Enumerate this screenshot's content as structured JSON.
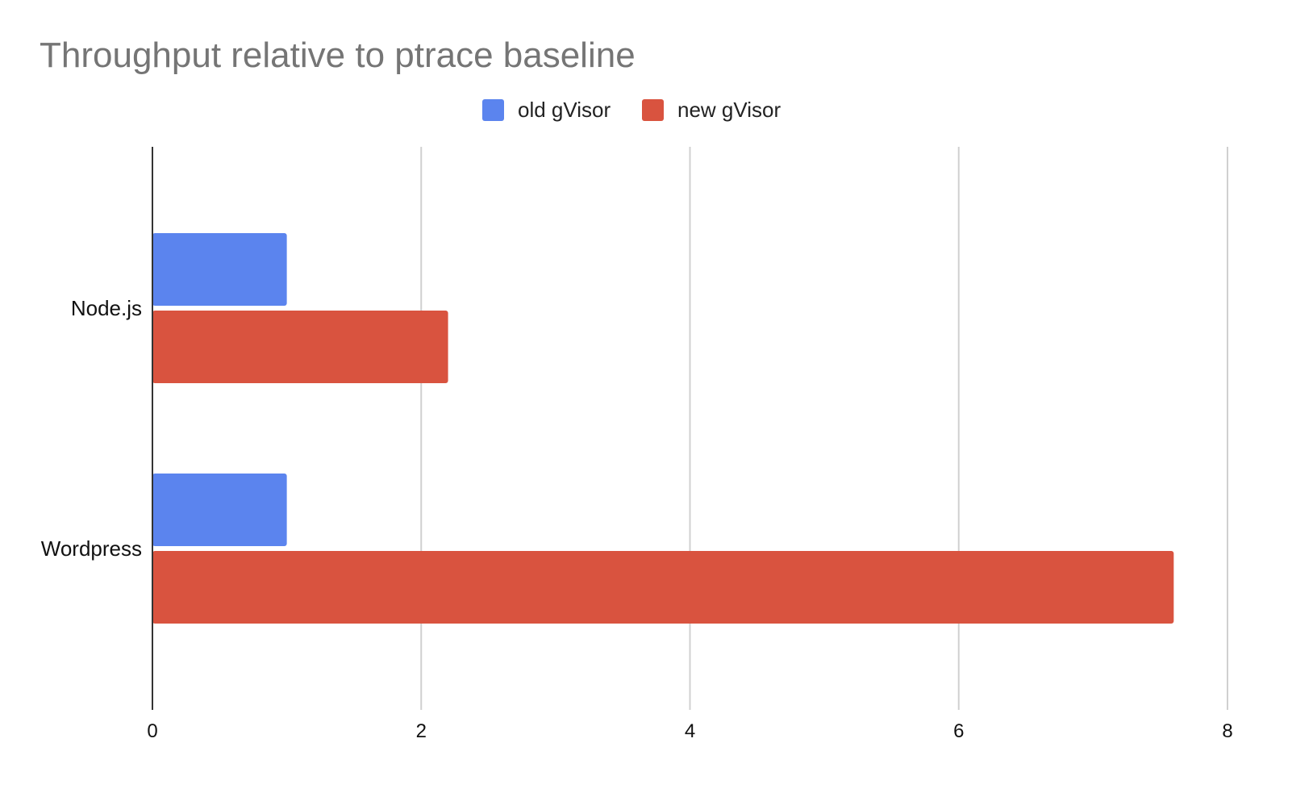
{
  "chart_data": {
    "type": "bar",
    "orientation": "horizontal",
    "title": "Throughput relative to ptrace baseline",
    "xlabel": "",
    "ylabel": "",
    "categories": [
      "Node.js",
      "Wordpress"
    ],
    "series": [
      {
        "name": "old gVisor",
        "color": "#5b84ee",
        "values": [
          1,
          1
        ]
      },
      {
        "name": "new gVisor",
        "color": "#d9533f",
        "values": [
          2.2,
          7.6
        ]
      }
    ],
    "xlim": [
      0,
      8
    ],
    "xticks": [
      "0",
      "2",
      "4",
      "6",
      "8"
    ],
    "grid": true,
    "legend_position": "top-center"
  }
}
